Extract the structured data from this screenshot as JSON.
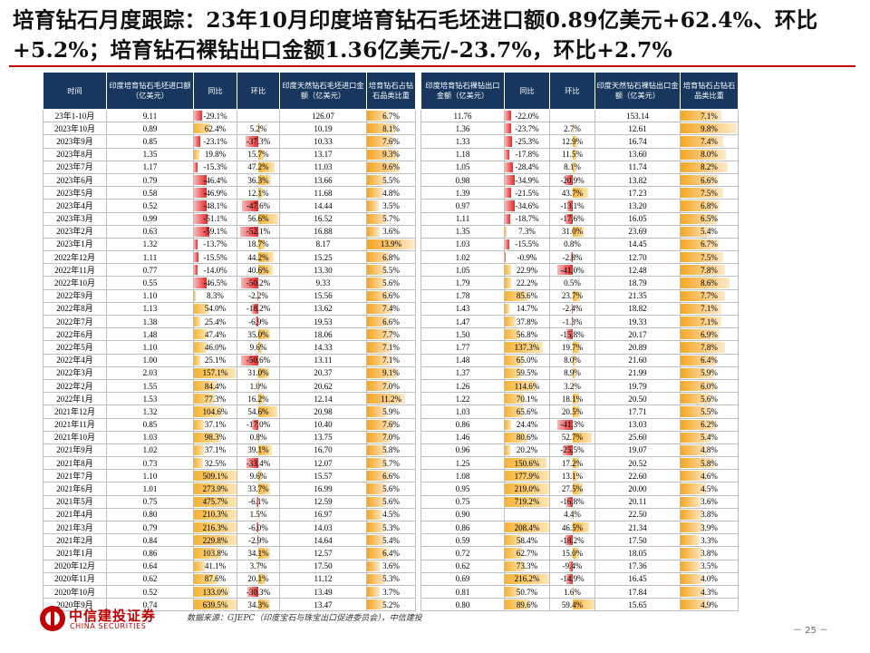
{
  "title": "培育钻石月度跟踪：23年10月印度培育钻石毛坯进口额0.89亿美元+62.4%、环比+5.2%；培育钻石裸钻出口金额1.36亿美元/-23.7%，环比+2.7%",
  "columns": [
    "时间",
    "印度培育钻石毛坯进口额（亿美元）",
    "同比",
    "环比",
    "印度天然钻石毛坯进口金额（亿美元）",
    "培育钻石占钻石品类比重",
    "印度培育钻石裸钻出口金额（亿美元）",
    "同比",
    "环比",
    "印度天然钻石裸钻出口金额（亿美元）",
    "培育钻石占钻石品类比重"
  ],
  "rows": [
    {
      "t": "23年1-10月",
      "a": "9.11",
      "b": "-29.1%",
      "c": "",
      "d": "126.07",
      "e": "6.7%",
      "f": "11.76",
      "g": "-22.0%",
      "h": "",
      "i": "153.14",
      "j": "7.1%"
    },
    {
      "t": "2023年10月",
      "a": "0.89",
      "b": "62.4%",
      "c": "5.2%",
      "d": "10.19",
      "e": "8.1%",
      "f": "1.36",
      "g": "-23.7%",
      "h": "2.7%",
      "i": "12.61",
      "j": "9.8%"
    },
    {
      "t": "2023年9月",
      "a": "0.85",
      "b": "-23.1%",
      "c": "-37.3%",
      "d": "10.33",
      "e": "7.6%",
      "f": "1.33",
      "g": "-25.3%",
      "h": "12.9%",
      "i": "16.74",
      "j": "7.4%"
    },
    {
      "t": "2023年8月",
      "a": "1.35",
      "b": "19.8%",
      "c": "15.7%",
      "d": "13.17",
      "e": "9.3%",
      "f": "1.18",
      "g": "-17.8%",
      "h": "11.5%",
      "i": "13.60",
      "j": "8.0%"
    },
    {
      "t": "2023年7月",
      "a": "1.17",
      "b": "-15.3%",
      "c": "47.2%",
      "d": "11.03",
      "e": "9.6%",
      "f": "1.05",
      "g": "-28.4%",
      "h": "8.1%",
      "i": "11.74",
      "j": "8.2%"
    },
    {
      "t": "2023年6月",
      "a": "0.79",
      "b": "-46.4%",
      "c": "36.3%",
      "d": "13.66",
      "e": "5.5%",
      "f": "0.98",
      "g": "-34.9%",
      "h": "-20.9%",
      "i": "13.82",
      "j": "6.6%"
    },
    {
      "t": "2023年5月",
      "a": "0.58",
      "b": "-46.9%",
      "c": "12.1%",
      "d": "11.68",
      "e": "4.8%",
      "f": "1.39",
      "g": "-21.5%",
      "h": "43.7%",
      "i": "17.23",
      "j": "7.5%"
    },
    {
      "t": "2023年4月",
      "a": "0.52",
      "b": "-48.1%",
      "c": "-47.6%",
      "d": "14.44",
      "e": "3.5%",
      "f": "0.97",
      "g": "-34.6%",
      "h": "-13.1%",
      "i": "13.20",
      "j": "6.8%"
    },
    {
      "t": "2023年3月",
      "a": "0.99",
      "b": "-51.1%",
      "c": "56.6%",
      "d": "16.52",
      "e": "5.7%",
      "f": "1.11",
      "g": "-18.7%",
      "h": "-17.6%",
      "i": "16.05",
      "j": "6.5%"
    },
    {
      "t": "2023年2月",
      "a": "0.63",
      "b": "-59.1%",
      "c": "-52.1%",
      "d": "16.88",
      "e": "3.6%",
      "f": "1.35",
      "g": "7.3%",
      "h": "31.0%",
      "i": "23.69",
      "j": "5.4%"
    },
    {
      "t": "2023年1月",
      "a": "1.32",
      "b": "-13.7%",
      "c": "18.7%",
      "d": "8.17",
      "e": "13.9%",
      "f": "1.03",
      "g": "-15.5%",
      "h": "0.8%",
      "i": "14.45",
      "j": "6.7%"
    },
    {
      "t": "2022年12月",
      "a": "1.11",
      "b": "-15.5%",
      "c": "44.2%",
      "d": "15.25",
      "e": "6.8%",
      "f": "1.02",
      "g": "-0.9%",
      "h": "-2.8%",
      "i": "12.70",
      "j": "7.5%"
    },
    {
      "t": "2022年11月",
      "a": "0.77",
      "b": "-14.0%",
      "c": "40.6%",
      "d": "13.30",
      "e": "5.5%",
      "f": "1.05",
      "g": "22.9%",
      "h": "-41.0%",
      "i": "12.48",
      "j": "7.8%"
    },
    {
      "t": "2022年10月",
      "a": "0.55",
      "b": "-46.5%",
      "c": "-50.2%",
      "d": "9.33",
      "e": "5.6%",
      "f": "1.79",
      "g": "22.2%",
      "h": "0.5%",
      "i": "18.79",
      "j": "8.6%"
    },
    {
      "t": "2022年9月",
      "a": "1.10",
      "b": "8.3%",
      "c": "-2.2%",
      "d": "15.56",
      "e": "6.6%",
      "f": "1.78",
      "g": "85.6%",
      "h": "23.7%",
      "i": "21.35",
      "j": "7.7%"
    },
    {
      "t": "2022年8月",
      "a": "1.13",
      "b": "54.0%",
      "c": "-18.2%",
      "d": "13.62",
      "e": "7.4%",
      "f": "1.43",
      "g": "14.7%",
      "h": "-2.4%",
      "i": "18.82",
      "j": "7.1%"
    },
    {
      "t": "2022年7月",
      "a": "1.38",
      "b": "25.4%",
      "c": "-6.9%",
      "d": "19.53",
      "e": "6.6%",
      "f": "1.47",
      "g": "37.8%",
      "h": "-1.3%",
      "i": "19.33",
      "j": "7.1%"
    },
    {
      "t": "2022年6月",
      "a": "1.48",
      "b": "47.4%",
      "c": "35.0%",
      "d": "18.06",
      "e": "7.7%",
      "f": "1.50",
      "g": "56.8%",
      "h": "-15.8%",
      "i": "20.17",
      "j": "6.9%"
    },
    {
      "t": "2022年5月",
      "a": "1.10",
      "b": "46.0%",
      "c": "9.6%",
      "d": "14.33",
      "e": "7.1%",
      "f": "1.77",
      "g": "137.3%",
      "h": "19.7%",
      "i": "20.89",
      "j": "7.8%"
    },
    {
      "t": "2022年4月",
      "a": "1.00",
      "b": "25.1%",
      "c": "-50.6%",
      "d": "13.11",
      "e": "7.1%",
      "f": "1.48",
      "g": "65.0%",
      "h": "8.0%",
      "i": "21.60",
      "j": "6.4%"
    },
    {
      "t": "2022年3月",
      "a": "2.03",
      "b": "157.1%",
      "c": "31.0%",
      "d": "20.37",
      "e": "9.1%",
      "f": "1.37",
      "g": "59.5%",
      "h": "8.9%",
      "i": "21.99",
      "j": "5.9%"
    },
    {
      "t": "2022年2月",
      "a": "1.55",
      "b": "84.4%",
      "c": "1.0%",
      "d": "20.62",
      "e": "7.0%",
      "f": "1.26",
      "g": "114.6%",
      "h": "3.2%",
      "i": "19.79",
      "j": "6.0%"
    },
    {
      "t": "2022年1月",
      "a": "1.53",
      "b": "77.3%",
      "c": "16.2%",
      "d": "12.14",
      "e": "11.2%",
      "f": "1.22",
      "g": "70.1%",
      "h": "18.1%",
      "i": "20.50",
      "j": "5.6%"
    },
    {
      "t": "2021年12月",
      "a": "1.32",
      "b": "104.6%",
      "c": "54.6%",
      "d": "20.98",
      "e": "5.9%",
      "f": "1.03",
      "g": "65.6%",
      "h": "20.5%",
      "i": "17.71",
      "j": "5.5%"
    },
    {
      "t": "2021年11月",
      "a": "0.85",
      "b": "37.1%",
      "c": "-17.0%",
      "d": "10.40",
      "e": "7.6%",
      "f": "0.86",
      "g": "24.4%",
      "h": "-41.3%",
      "i": "13.03",
      "j": "6.2%"
    },
    {
      "t": "2021年10月",
      "a": "1.03",
      "b": "98.3%",
      "c": "0.8%",
      "d": "13.75",
      "e": "7.0%",
      "f": "1.46",
      "g": "80.6%",
      "h": "52.7%",
      "i": "25.60",
      "j": "5.4%"
    },
    {
      "t": "2021年9月",
      "a": "1.02",
      "b": "37.1%",
      "c": "39.1%",
      "d": "16.70",
      "e": "5.8%",
      "f": "0.96",
      "g": "20.2%",
      "h": "-25.5%",
      "i": "19.07",
      "j": "4.8%"
    },
    {
      "t": "2021年8月",
      "a": "0.73",
      "b": "32.5%",
      "c": "-33.4%",
      "d": "12.07",
      "e": "5.7%",
      "f": "1.25",
      "g": "150.6%",
      "h": "17.2%",
      "i": "20.52",
      "j": "5.8%"
    },
    {
      "t": "2021年7月",
      "a": "1.10",
      "b": "509.1%",
      "c": "9.6%",
      "d": "15.57",
      "e": "6.6%",
      "f": "1.08",
      "g": "177.9%",
      "h": "13.1%",
      "i": "22.60",
      "j": "4.6%"
    },
    {
      "t": "2021年6月",
      "a": "1.01",
      "b": "273.9%",
      "c": "33.7%",
      "d": "16.99",
      "e": "5.6%",
      "f": "0.95",
      "g": "219.0%",
      "h": "27.5%",
      "i": "20.00",
      "j": "4.5%"
    },
    {
      "t": "2021年5月",
      "a": "0.75",
      "b": "475.7%",
      "c": "-6.1%",
      "d": "12.59",
      "e": "5.6%",
      "f": "0.75",
      "g": "719.2%",
      "h": "-16.8%",
      "i": "20.11",
      "j": "3.6%"
    },
    {
      "t": "2021年4月",
      "a": "0.80",
      "b": "210.3%",
      "c": "1.5%",
      "d": "16.97",
      "e": "4.5%",
      "f": "0.90",
      "g": "",
      "h": "4.4%",
      "i": "22.50",
      "j": "3.8%"
    },
    {
      "t": "2021年3月",
      "a": "0.79",
      "b": "216.3%",
      "c": "-6.0%",
      "d": "14.03",
      "e": "5.3%",
      "f": "0.86",
      "g": "208.4%",
      "h": "46.5%",
      "i": "21.34",
      "j": "3.9%"
    },
    {
      "t": "2021年2月",
      "a": "0.84",
      "b": "229.8%",
      "c": "-2.9%",
      "d": "14.64",
      "e": "5.4%",
      "f": "0.59",
      "g": "58.4%",
      "h": "-18.2%",
      "i": "17.50",
      "j": "3.3%"
    },
    {
      "t": "2021年1月",
      "a": "0.86",
      "b": "103.8%",
      "c": "34.1%",
      "d": "12.57",
      "e": "6.4%",
      "f": "0.72",
      "g": "62.7%",
      "h": "15.0%",
      "i": "18.05",
      "j": "3.8%"
    },
    {
      "t": "2020年12月",
      "a": "0.64",
      "b": "41.1%",
      "c": "3.7%",
      "d": "17.50",
      "e": "3.6%",
      "f": "0.62",
      "g": "73.3%",
      "h": "-9.4%",
      "i": "17.36",
      "j": "3.5%"
    },
    {
      "t": "2020年11月",
      "a": "0.62",
      "b": "87.6%",
      "c": "20.1%",
      "d": "11.12",
      "e": "5.3%",
      "f": "0.69",
      "g": "216.2%",
      "h": "-14.9%",
      "i": "16.45",
      "j": "4.0%"
    },
    {
      "t": "2020年10月",
      "a": "0.52",
      "b": "133.0%",
      "c": "-30.3%",
      "d": "13.49",
      "e": "3.7%",
      "f": "0.81",
      "g": "50.7%",
      "h": "1.6%",
      "i": "17.84",
      "j": "4.3%"
    },
    {
      "t": "2020年9月",
      "a": "0.74",
      "b": "639.5%",
      "c": "34.3%",
      "d": "13.47",
      "e": "5.2%",
      "f": "0.80",
      "g": "89.6%",
      "h": "59.4%",
      "i": "15.65",
      "j": "4.9%"
    }
  ],
  "logo": {
    "cn": "中信建投证券",
    "en": "CHINA SECURITIES"
  },
  "source": "数据来源：GJEPC（印度宝石与珠宝出口促进委员会），中信建投",
  "page": "－ 25 －",
  "colors": {
    "header": "#17375e",
    "accent": "#c00000",
    "positive_bar": "#f5b335",
    "negative_bar": "#e52b2b"
  }
}
